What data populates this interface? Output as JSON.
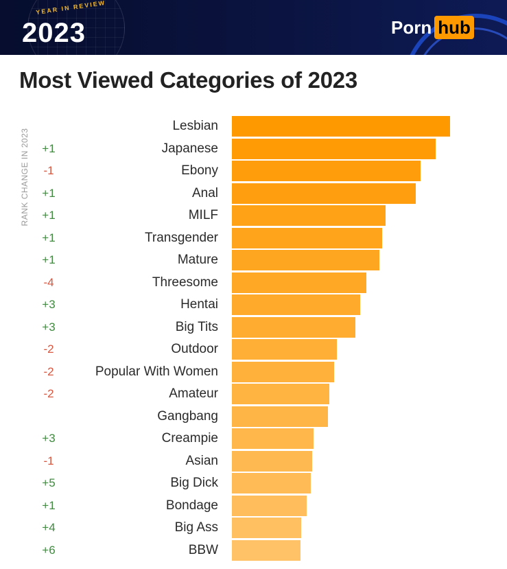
{
  "header": {
    "badge_tag": "YEAR IN REVIEW",
    "badge_year": "2023",
    "logo_left": "Porn",
    "logo_right": "hub"
  },
  "chart_data": {
    "type": "bar",
    "orientation": "horizontal",
    "title": "Most Viewed Categories of 2023",
    "rank_change_label": "RANK CHANGE IN 2023",
    "categories": [
      "Lesbian",
      "Japanese",
      "Ebony",
      "Anal",
      "MILF",
      "Transgender",
      "Mature",
      "Threesome",
      "Hentai",
      "Big Tits",
      "Outdoor",
      "Popular With Women",
      "Amateur",
      "Gangbang",
      "Creampie",
      "Asian",
      "Big Dick",
      "Bondage",
      "Big Ass",
      "BBW"
    ],
    "values": [
      318,
      297,
      275,
      268,
      224,
      219,
      215,
      196,
      187,
      180,
      153,
      149,
      142,
      140,
      119,
      117,
      115,
      109,
      101,
      100
    ],
    "rank_changes": [
      "",
      "+1",
      "-1",
      "+1",
      "+1",
      "+1",
      "+1",
      "-4",
      "+3",
      "+3",
      "-2",
      "-2",
      "-2",
      "",
      "+3",
      "-1",
      "+5",
      "+1",
      "+4",
      "+6"
    ],
    "bar_color_start": "#ff9900",
    "bar_color_end": "#ffc266",
    "up_color": "#3f8a3f",
    "down_color": "#d8553e"
  }
}
